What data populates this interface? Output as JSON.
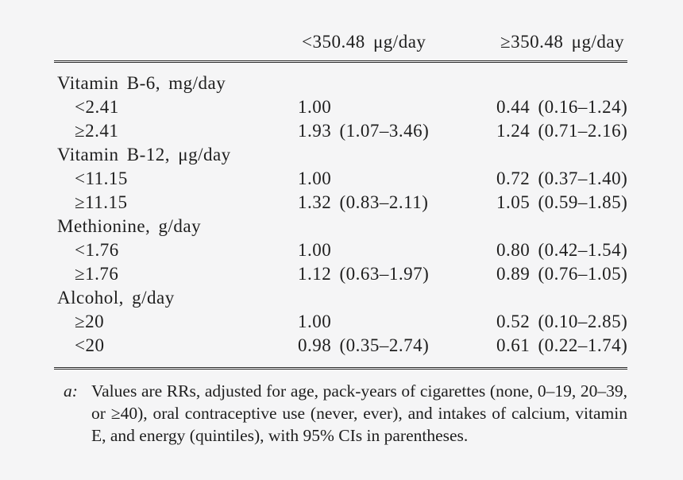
{
  "table": {
    "columns": [
      "<350.48 μg/day",
      "≥350.48 μg/day"
    ],
    "rows": [
      {
        "type": "section",
        "label": "Vitamin B-6, mg/day",
        "v1": "",
        "v2": ""
      },
      {
        "type": "indent",
        "label": "<2.41",
        "v1": "1.00",
        "v2": "0.44 (0.16–1.24)"
      },
      {
        "type": "indent",
        "label": "≥2.41",
        "v1": "1.93 (1.07–3.46)",
        "v2": "1.24 (0.71–2.16)"
      },
      {
        "type": "section",
        "label": "Vitamin B-12, μg/day",
        "v1": "",
        "v2": ""
      },
      {
        "type": "indent",
        "label": "<11.15",
        "v1": "1.00",
        "v2": "0.72 (0.37–1.40)"
      },
      {
        "type": "indent",
        "label": "≥11.15",
        "v1": "1.32 (0.83–2.11)",
        "v2": "1.05 (0.59–1.85)"
      },
      {
        "type": "section",
        "label": "Methionine, g/day",
        "v1": "",
        "v2": ""
      },
      {
        "type": "indent",
        "label": "<1.76",
        "v1": "1.00",
        "v2": "0.80 (0.42–1.54)"
      },
      {
        "type": "indent",
        "label": "≥1.76",
        "v1": "1.12 (0.63–1.97)",
        "v2": "0.89 (0.76–1.05)"
      },
      {
        "type": "section",
        "label": "Alcohol, g/day",
        "v1": "",
        "v2": ""
      },
      {
        "type": "indent",
        "label": "≥20",
        "v1": "1.00",
        "v2": "0.52 (0.10–2.85)"
      },
      {
        "type": "indent",
        "label": "<20",
        "v1": "0.98 (0.35–2.74)",
        "v2": "0.61 (0.22–1.74)"
      }
    ]
  },
  "footnote": {
    "marker": "a:",
    "text": "Values are RRs, adjusted for age, pack-years of cigarettes (none, 0–19, 20–39, or ≥40), oral contraceptive use (never, ever), and intakes of calcium, vitamin E, and energy (quintiles), with 95% CIs in parentheses."
  }
}
